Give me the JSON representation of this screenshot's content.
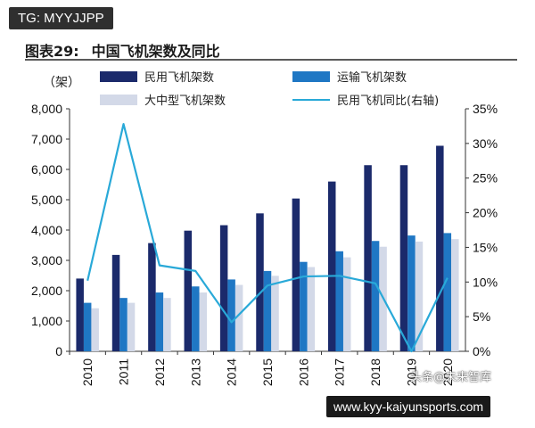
{
  "badge": "TG: MYYJJPP",
  "heading": {
    "number": "图表29:",
    "text": "中国飞机架数及同比"
  },
  "url": "www.kyy-kaiyunsports.com",
  "source": "头条@未来智库",
  "chart_data": {
    "type": "bar",
    "categories": [
      "2010",
      "2011",
      "2012",
      "2013",
      "2014",
      "2015",
      "2016",
      "2017",
      "2018",
      "2019",
      "2020"
    ],
    "ylabel_left": "（架）",
    "ylim_left": [
      0,
      8000
    ],
    "yticks_left": [
      "0",
      "1,000",
      "2,000",
      "3,000",
      "4,000",
      "5,000",
      "6,000",
      "7,000",
      "8,000"
    ],
    "ylim_right": [
      0,
      35
    ],
    "yticks_right": [
      "0%",
      "5%",
      "10%",
      "15%",
      "20%",
      "25%",
      "30%",
      "35%"
    ],
    "grid": false,
    "legend_position": "top",
    "series": [
      {
        "name": "民用飞机架数",
        "kind": "bar",
        "axis": "left",
        "color": "#1b2a6b",
        "values": [
          2400,
          3180,
          3570,
          3980,
          4160,
          4550,
          5040,
          5600,
          6140,
          6140,
          6780
        ]
      },
      {
        "name": "运输飞机架数",
        "kind": "bar",
        "axis": "left",
        "color": "#1f77c4",
        "values": [
          1600,
          1760,
          1940,
          2140,
          2370,
          2650,
          2950,
          3300,
          3640,
          3820,
          3900
        ]
      },
      {
        "name": "大中型飞机架数",
        "kind": "bar",
        "axis": "left",
        "color": "#d3d9e8",
        "values": [
          1420,
          1600,
          1760,
          1940,
          2190,
          2490,
          2780,
          3100,
          3450,
          3620,
          3700
        ]
      },
      {
        "name": "民用飞机同比(右轴)",
        "kind": "line",
        "axis": "right",
        "color": "#29a9d8",
        "values": [
          10.2,
          32.8,
          12.4,
          11.6,
          4.2,
          9.5,
          10.8,
          10.9,
          9.8,
          0,
          10.6
        ]
      }
    ]
  }
}
